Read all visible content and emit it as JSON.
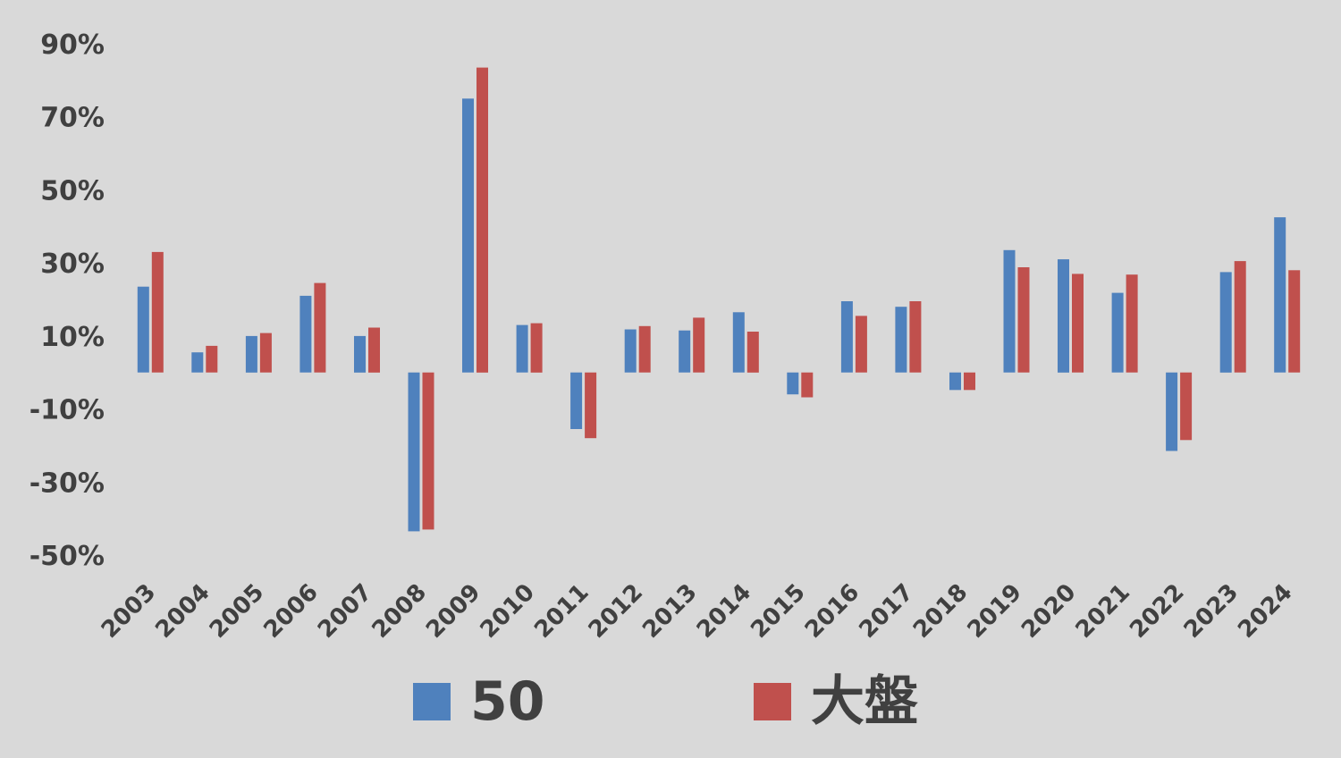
{
  "chart_data": {
    "type": "bar",
    "title": "",
    "xlabel": "",
    "ylabel": "",
    "ylim": [
      -0.5,
      0.9
    ],
    "ytick_labels": [
      "90%",
      "70%",
      "50%",
      "30%",
      "10%",
      "-10%",
      "-30%",
      "-50%"
    ],
    "ytick_values": [
      0.9,
      0.7,
      0.5,
      0.3,
      0.1,
      -0.1,
      -0.3,
      -0.5
    ],
    "grid": false,
    "legend_position": "bottom",
    "categories": [
      "2003",
      "2004",
      "2005",
      "2006",
      "2007",
      "2008",
      "2009",
      "2010",
      "2011",
      "2012",
      "2013",
      "2014",
      "2015",
      "2016",
      "2017",
      "2018",
      "2019",
      "2020",
      "2021",
      "2022",
      "2023",
      "2024"
    ],
    "series": [
      {
        "name": "50",
        "color": "#4f81bd",
        "values": [
          0.235,
          0.055,
          0.1,
          0.21,
          0.1,
          -0.435,
          0.75,
          0.13,
          -0.155,
          0.118,
          0.115,
          0.165,
          -0.06,
          0.195,
          0.18,
          -0.048,
          0.335,
          0.31,
          0.218,
          -0.215,
          0.275,
          0.425
        ]
      },
      {
        "name": "大盤",
        "color": "#c0504d",
        "values": [
          0.33,
          0.073,
          0.108,
          0.245,
          0.123,
          -0.43,
          0.835,
          0.135,
          -0.18,
          0.127,
          0.15,
          0.112,
          -0.068,
          0.155,
          0.195,
          -0.048,
          0.288,
          0.27,
          0.268,
          -0.185,
          0.305,
          0.28
        ]
      }
    ]
  }
}
